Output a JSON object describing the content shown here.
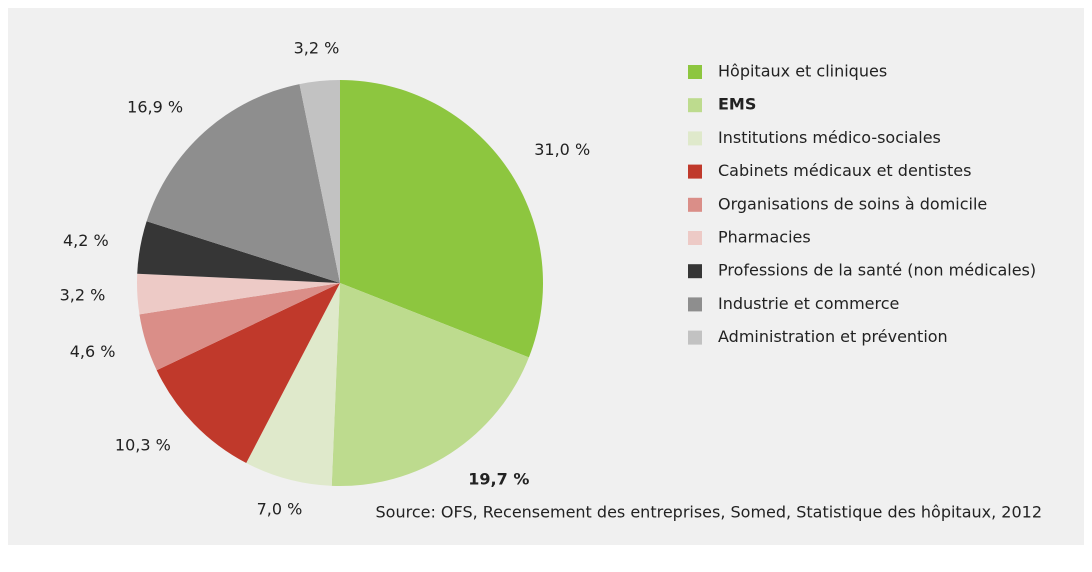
{
  "chart_data": {
    "type": "pie",
    "categories": [
      "Hôpitaux et cliniques",
      "EMS",
      "Institutions médico-sociales",
      "Cabinets médicaux et dentistes",
      "Organisations de soins à domicile",
      "Pharmacies",
      "Professions de la santé (non médicales)",
      "Industrie et commerce",
      "Administration et prévention"
    ],
    "values": [
      31.0,
      19.7,
      7.0,
      10.3,
      4.6,
      3.2,
      4.2,
      16.9,
      3.2
    ],
    "value_labels": [
      "31,0 %",
      "19,7 %",
      "7,0 %",
      "10,3 %",
      "4,6 %",
      "3,2 %",
      "4,2 %",
      "16,9 %",
      "3,2 %"
    ],
    "colors": [
      "#8dc63f",
      "#bddb8e",
      "#dfe9cb",
      "#c0392b",
      "#da8e88",
      "#edcac6",
      "#363636",
      "#8e8e8e",
      "#c2c2c2"
    ],
    "bold_index": 1,
    "legend": "right",
    "source": "Source: OFS, Recensement des entreprises, Somed, Statistique des hôpitaux, 2012"
  }
}
